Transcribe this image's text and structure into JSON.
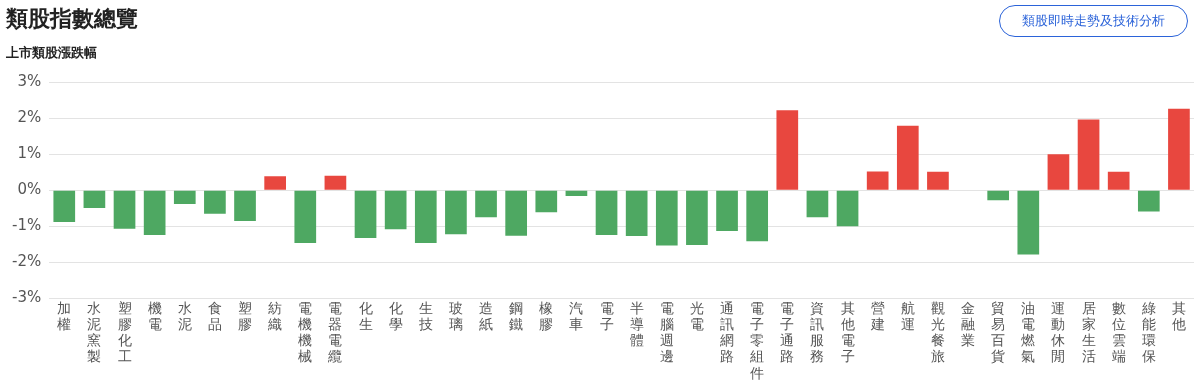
{
  "chart_data": {
    "type": "bar",
    "title": "類股指數總覽",
    "subtitle": "上市類股漲跌幅",
    "annotations": [
      "類股即時走勢及技術分析"
    ],
    "categories": [
      "加權",
      "水泥窯製",
      "塑膠化工",
      "機電",
      "水泥",
      "食品",
      "塑膠",
      "紡織",
      "電機機械",
      "電器電纜",
      "化生",
      "化學",
      "生技",
      "玻璃",
      "造紙",
      "鋼鐵",
      "橡膠",
      "汽車",
      "電子",
      "半導體",
      "電腦週邊",
      "光電",
      "通訊網路",
      "電子零組件",
      "電子通路",
      "資訊服務",
      "其他電子",
      "營建",
      "航運",
      "觀光餐旅",
      "金融業",
      "貿易百貨",
      "油電燃氣",
      "運動休閒",
      "居家生活",
      "數位雲端",
      "綠能環保",
      "其他"
    ],
    "values": [
      -0.88,
      -0.49,
      -1.07,
      -1.24,
      -0.38,
      -0.65,
      -0.85,
      0.39,
      -1.46,
      0.4,
      -1.32,
      -1.08,
      -1.46,
      -1.22,
      -0.75,
      -1.26,
      -0.61,
      -0.16,
      -1.24,
      -1.27,
      -1.53,
      -1.52,
      -1.13,
      -1.41,
      2.22,
      -0.75,
      -1.0,
      0.52,
      1.79,
      0.51,
      0,
      -0.28,
      -1.78,
      1.0,
      1.96,
      0.51,
      -0.59,
      2.26
    ],
    "colors": [
      "#4ea862",
      "#4ea862",
      "#4ea862",
      "#4ea862",
      "#4ea862",
      "#4ea862",
      "#4ea862",
      "#e8473f",
      "#4ea862",
      "#e8473f",
      "#4ea862",
      "#4ea862",
      "#4ea862",
      "#4ea862",
      "#4ea862",
      "#4ea862",
      "#4ea862",
      "#4ea862",
      "#4ea862",
      "#4ea862",
      "#4ea862",
      "#4ea862",
      "#4ea862",
      "#4ea862",
      "#e8473f",
      "#4ea862",
      "#4ea862",
      "#e8473f",
      "#e8473f",
      "#e8473f",
      "#4ea862",
      "#4ea862",
      "#4ea862",
      "#e8473f",
      "#e8473f",
      "#e8473f",
      "#4ea862",
      "#e8473f"
    ],
    "ylim": [
      -3,
      3
    ],
    "yticks": [
      {
        "value": -3,
        "label": "-3%"
      },
      {
        "value": -2,
        "label": "-2%"
      },
      {
        "value": -1,
        "label": "-1%"
      },
      {
        "value": 0,
        "label": "0%"
      },
      {
        "value": 1,
        "label": "1%"
      },
      {
        "value": 2,
        "label": "2%"
      },
      {
        "value": 3,
        "label": "3%"
      }
    ],
    "grid": "y",
    "legend": false
  }
}
